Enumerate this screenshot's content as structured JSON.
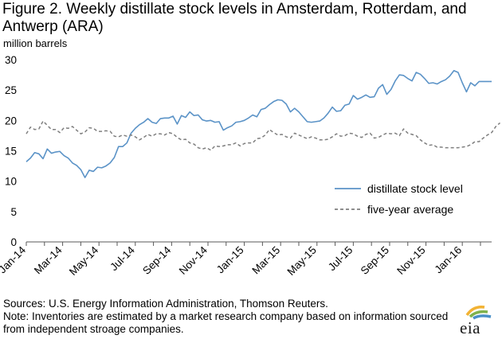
{
  "figure": {
    "title": "Figure 2. Weekly distillate stock levels in Amsterdam, Rotterdam, and Antwerp (ARA)",
    "unit_label": "million barrels"
  },
  "footer": {
    "sources": "Sources: U.S. Energy Information Administration, Thomson Reuters.",
    "note": "Note: Inventories are estimated by a market research company based on information sourced from independent stroage companies."
  },
  "logo": {
    "text": "eia",
    "icon": "eia-logo-icon"
  },
  "colors": {
    "stock": "#5b93c7",
    "average": "#7f7f7f",
    "axis": "#595959"
  },
  "chart_data": {
    "type": "line",
    "title": "Figure 2. Weekly distillate stock levels in Amsterdam, Rotterdam, and Antwerp (ARA)",
    "ylabel": "million barrels",
    "ylim": [
      0,
      30
    ],
    "yticks": [
      "0",
      "5",
      "10",
      "15",
      "20",
      "25",
      "30"
    ],
    "xlabels": [
      "Jan-14",
      "Mar-14",
      "May-14",
      "Jul-14",
      "Sep-14",
      "Nov-14",
      "Jan-15",
      "Mar-15",
      "May-15",
      "Jul-15",
      "Sep-15",
      "Nov-15",
      "Jan-16"
    ],
    "grid": false,
    "legend_position": "bottom-right",
    "series": [
      {
        "name": "distillate stock level",
        "style": "solid",
        "values": [
          13.2,
          13.8,
          14.7,
          14.5,
          13.7,
          15.3,
          14.6,
          14.8,
          14.9,
          14.2,
          13.8,
          13.0,
          12.6,
          11.9,
          10.6,
          11.8,
          11.6,
          12.3,
          12.2,
          12.5,
          13.0,
          13.9,
          15.7,
          15.7,
          16.3,
          17.9,
          18.7,
          19.3,
          19.7,
          20.3,
          19.7,
          19.5,
          20.3,
          20.4,
          20.4,
          20.7,
          19.4,
          20.8,
          20.5,
          21.4,
          20.8,
          20.9,
          20.1,
          19.9,
          20.0,
          19.7,
          19.8,
          18.4,
          18.8,
          19.1,
          19.7,
          19.8,
          20.0,
          20.4,
          20.9,
          20.6,
          21.8,
          22.0,
          22.6,
          23.1,
          23.4,
          23.3,
          22.7,
          21.4,
          22.0,
          21.4,
          20.6,
          19.8,
          19.7,
          19.8,
          19.9,
          20.4,
          21.2,
          22.2,
          21.5,
          21.6,
          22.5,
          22.7,
          24.1,
          23.5,
          23.8,
          24.2,
          23.8,
          23.9,
          25.3,
          25.9,
          24.3,
          25.1,
          26.5,
          27.5,
          27.4,
          26.9,
          26.5,
          27.9,
          27.6,
          26.9,
          26.1,
          26.2,
          26.0,
          26.4,
          26.7,
          27.3,
          28.2,
          27.9,
          26.2,
          24.7,
          26.2,
          25.7,
          26.4,
          26.4,
          26.4,
          26.4
        ]
      },
      {
        "name": "five-year average",
        "style": "dashed",
        "values": [
          17.8,
          18.9,
          18.5,
          18.6,
          19.9,
          19.2,
          18.5,
          18.5,
          18.0,
          18.8,
          18.7,
          19.0,
          18.4,
          17.8,
          18.1,
          18.8,
          18.7,
          18.2,
          18.2,
          18.3,
          18.2,
          17.4,
          17.3,
          17.6,
          17.4,
          17.6,
          17.3,
          16.8,
          17.2,
          17.7,
          17.4,
          17.8,
          17.8,
          17.6,
          18.0,
          17.8,
          17.2,
          16.8,
          16.9,
          16.3,
          16.1,
          15.5,
          15.3,
          15.5,
          15.1,
          15.8,
          15.7,
          15.8,
          16.0,
          16.0,
          16.3,
          15.8,
          16.2,
          16.3,
          16.3,
          17.0,
          17.1,
          17.6,
          18.5,
          18.0,
          17.6,
          17.7,
          17.3,
          17.1,
          17.9,
          17.6,
          17.3,
          17.0,
          17.3,
          17.1,
          16.8,
          16.8,
          16.9,
          17.3,
          17.8,
          17.4,
          17.5,
          17.9,
          17.8,
          17.4,
          17.2,
          17.7,
          17.9,
          17.1,
          17.2,
          17.6,
          17.9,
          17.8,
          17.9,
          17.5,
          18.6,
          17.9,
          17.7,
          17.5,
          16.8,
          16.3,
          15.9,
          16.0,
          15.6,
          15.6,
          15.5,
          15.5,
          15.5,
          15.5,
          15.6,
          15.7,
          16.0,
          16.5,
          16.5,
          17.1,
          17.6,
          18.0,
          19.0,
          19.6
        ]
      }
    ]
  }
}
